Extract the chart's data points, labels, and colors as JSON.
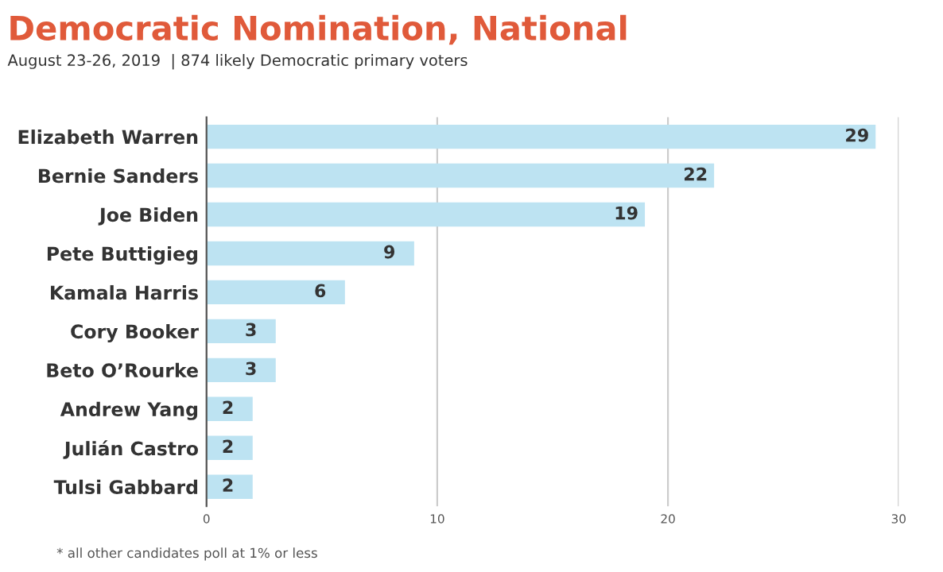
{
  "chart_data": {
    "type": "bar",
    "orientation": "horizontal",
    "title": "Democratic Nomination, National",
    "subtitle": "August 23-26, 2019  | 874 likely Democratic primary voters",
    "categories": [
      "Elizabeth Warren",
      "Bernie Sanders",
      "Joe Biden",
      "Pete Buttigieg",
      "Kamala Harris",
      "Cory Booker",
      "Beto O’Rourke",
      "Andrew Yang",
      "Julián Castro",
      "Tulsi Gabbard"
    ],
    "values": [
      29,
      22,
      19,
      9,
      6,
      3,
      3,
      2,
      2,
      2
    ],
    "color": "#bde3f2",
    "xlim": [
      0,
      30
    ],
    "xticks": [
      0,
      10,
      20,
      30
    ],
    "grid": "x",
    "data_labels": true,
    "annotations": [
      "* all other candidates poll at 1% or less"
    ]
  }
}
